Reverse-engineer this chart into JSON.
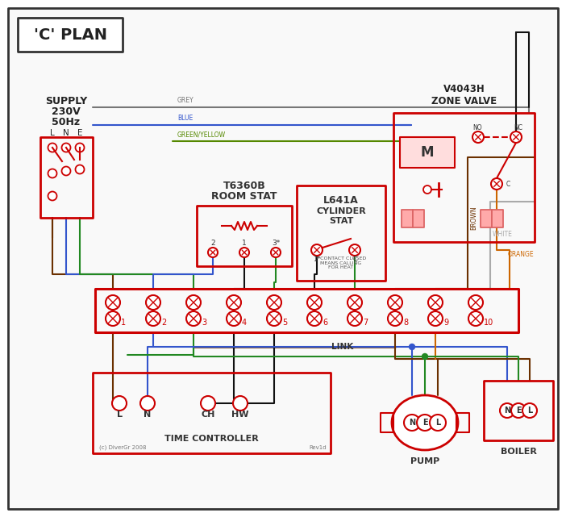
{
  "RED": "#cc0000",
  "GREY": "#777777",
  "BLUE": "#3355cc",
  "GREEN": "#228822",
  "GY": "#558800",
  "BROWN": "#6b3000",
  "WHITE": "#aaaaaa",
  "ORANGE": "#cc6600",
  "BLACK": "#111111",
  "title": "'C' PLAN",
  "supply": "SUPPLY\n230V\n50Hz",
  "zone_valve": "V4043H\nZONE VALVE",
  "room_stat_title": "T6360B",
  "room_stat_sub": "ROOM STAT",
  "cyl_stat_title": "L641A",
  "cyl_stat_sub": "CYLINDER\nSTAT",
  "time_ctrl": "TIME CONTROLLER",
  "tc_terminals": [
    "L",
    "N",
    "CH",
    "HW"
  ],
  "pump": "PUMP",
  "boiler": "BOILER",
  "link": "LINK",
  "nel": [
    "N",
    "E",
    "L"
  ],
  "term_nums": [
    "1",
    "2",
    "3",
    "4",
    "5",
    "6",
    "7",
    "8",
    "9",
    "10"
  ],
  "note": "* CONTACT CLOSED\nMEANS CALLING\nFOR HEAT",
  "lne": [
    "L",
    "N",
    "E"
  ],
  "copyright": "(c) DiverGr 2008",
  "rev": "Rev1d",
  "grey_label": "GREY",
  "blue_label": "BLUE",
  "gy_label": "GREEN/YELLOW",
  "brown_label": "BROWN",
  "white_label": "WHITE",
  "orange_label": "ORANGE"
}
